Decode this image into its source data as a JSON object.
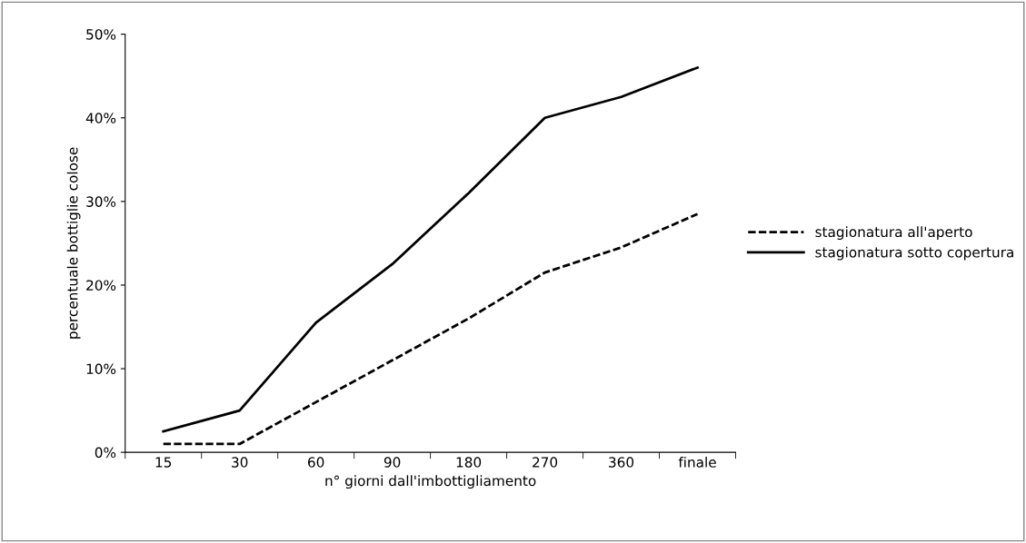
{
  "chart_data": {
    "type": "line",
    "xlabel": "n° giorni dall'imbottigliamento",
    "ylabel": "percentuale bottiglie colose",
    "categories": [
      "15",
      "30",
      "60",
      "90",
      "180",
      "270",
      "360",
      "finale"
    ],
    "series": [
      {
        "name": "stagionatura all'aperto",
        "color": "#000000",
        "line_style": "dashed",
        "values": [
          1,
          1,
          6,
          11,
          16,
          21.5,
          24.5,
          28.5
        ]
      },
      {
        "name": "stagionatura sotto copertura",
        "color": "#000000",
        "line_style": "solid",
        "values": [
          2.5,
          5,
          15.5,
          22.5,
          31,
          40,
          42.5,
          46
        ]
      }
    ],
    "ylim": [
      0,
      50
    ],
    "yticks": [
      {
        "value": 0,
        "label": "0%"
      },
      {
        "value": 10,
        "label": "10%"
      },
      {
        "value": 20,
        "label": "20%"
      },
      {
        "value": 30,
        "label": "30%"
      },
      {
        "value": 40,
        "label": "40%"
      },
      {
        "value": 50,
        "label": "50%"
      }
    ],
    "grid": false,
    "legend": "right",
    "marker": "none"
  }
}
